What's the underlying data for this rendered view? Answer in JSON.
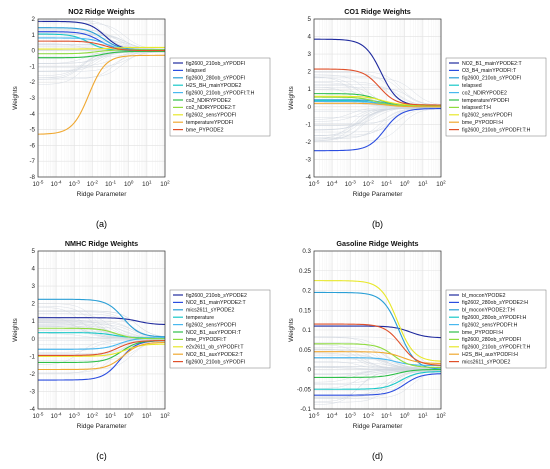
{
  "figure": {
    "panels": [
      {
        "id": "a",
        "caption": "(a)"
      },
      {
        "id": "b",
        "caption": "(b)"
      },
      {
        "id": "c",
        "caption": "(c)"
      },
      {
        "id": "d",
        "caption": "(d)"
      }
    ]
  },
  "chart_data": [
    {
      "type": "line",
      "title": "NO2 Ridge Weights",
      "xlabel": "Ridge Parameter",
      "ylabel": "Weights",
      "xscale": "log",
      "xlim": [
        1e-05,
        100
      ],
      "ylim": [
        -8,
        2
      ],
      "xticks": [
        "10-5",
        "10-4",
        "10-3",
        "10-2",
        "10-1",
        "100",
        "101",
        "102"
      ],
      "yticks": [
        -8,
        -7,
        -6,
        -5,
        -4,
        -3,
        -2,
        -1,
        0,
        1,
        2
      ],
      "grid": true,
      "legend_position": "right",
      "background_lines": 40,
      "series": [
        {
          "name": "fig2600_210ob_sYPODFI",
          "color": "#1f2a9e",
          "start": 1.85,
          "end": 0,
          "knee": -1.3
        },
        {
          "name": "telapsed",
          "color": "#2b4de0",
          "start": 1.2,
          "end": 0.05,
          "knee": -1.6
        },
        {
          "name": "fig2600_280ob_sYPODFI",
          "color": "#2a9fd6",
          "start": 1.45,
          "end": 0.05,
          "knee": -1.4
        },
        {
          "name": "H2S_BH_mainYPODE2",
          "color": "#18c8c8",
          "start": 1.05,
          "end": 0.0,
          "knee": -2.2
        },
        {
          "name": "fig2600_210ob_sYPODFI:T:H",
          "color": "#48b8ef",
          "start": 0.8,
          "end": 0.0,
          "knee": -1.2
        },
        {
          "name": "co2_NDIRYPODE2",
          "color": "#2fbf4a",
          "start": -0.45,
          "end": -0.05,
          "knee": -1.5
        },
        {
          "name": "co2_NDIRYPODE2:T",
          "color": "#8fdc3e",
          "start": -0.2,
          "end": 0.05,
          "knee": -1.8
        },
        {
          "name": "fig2602_sensYPODFI",
          "color": "#e8e82a",
          "start": 0.1,
          "end": 0.2,
          "knee": -1.0
        },
        {
          "name": "temperatureYPODFI",
          "color": "#f0a830",
          "start": -5.3,
          "end": -0.3,
          "knee": -2.2
        },
        {
          "name": "bme_PYPODE2",
          "color": "#e0502a",
          "start": 0.6,
          "end": 0.0,
          "knee": -1.3
        }
      ]
    },
    {
      "type": "line",
      "title": "CO1 Ridge Weights",
      "xlabel": "Ridge Parameter",
      "ylabel": "Weights",
      "xscale": "log",
      "xlim": [
        1e-05,
        100
      ],
      "ylim": [
        -4,
        5
      ],
      "xticks": [
        "10-5",
        "10-4",
        "10-3",
        "10-2",
        "10-1",
        "100",
        "101",
        "102"
      ],
      "yticks": [
        -4,
        -3,
        -2,
        -1,
        0,
        1,
        2,
        3,
        4,
        5
      ],
      "grid": true,
      "legend_position": "right",
      "background_lines": 40,
      "series": [
        {
          "name": "NO2_B1_mainYPODE2:T",
          "color": "#1f2a9e",
          "start": 3.85,
          "end": 0.05,
          "knee": -1.3
        },
        {
          "name": "O3_B4_mainYPODFI:T",
          "color": "#2b4de0",
          "start": -2.5,
          "end": -0.1,
          "knee": -1.1
        },
        {
          "name": "fig2600_210ob_sYPODFI",
          "color": "#2a9fd6",
          "start": 0.4,
          "end": 0.0,
          "knee": -1.0
        },
        {
          "name": "telapsed",
          "color": "#18c8c8",
          "start": 0.35,
          "end": 0.05,
          "knee": -1.4
        },
        {
          "name": "co2_NDIRYPODE2",
          "color": "#48b8ef",
          "start": 0.3,
          "end": 0.02,
          "knee": -1.2
        },
        {
          "name": "temperatureYPODFI",
          "color": "#2fbf4a",
          "start": 0.75,
          "end": 0.1,
          "knee": -1.5
        },
        {
          "name": "telapsed:T:H",
          "color": "#8fdc3e",
          "start": 0.55,
          "end": 0.05,
          "knee": -1.6
        },
        {
          "name": "fig2602_sensYPODFI",
          "color": "#e8e82a",
          "start": 0.6,
          "end": 0.1,
          "knee": -1.2
        },
        {
          "name": "bme_PYPODFI:H",
          "color": "#f0a830",
          "start": 0.2,
          "end": 0.0,
          "knee": -1.0
        },
        {
          "name": "fig2600_210ob_sYPODFI:T:H",
          "color": "#e0502a",
          "start": 2.15,
          "end": 0.1,
          "knee": -1.4
        }
      ]
    },
    {
      "type": "line",
      "title": "NMHC Ridge Weights",
      "xlabel": "Ridge Parameter",
      "ylabel": "Weights",
      "xscale": "log",
      "xlim": [
        1e-05,
        100
      ],
      "ylim": [
        -4,
        5
      ],
      "xticks": [
        "10-5",
        "10-4",
        "10-3",
        "10-2",
        "10-1",
        "100",
        "101",
        "102"
      ],
      "yticks": [
        -4,
        -3,
        -2,
        -1,
        0,
        1,
        2,
        3,
        4,
        5
      ],
      "grid": true,
      "legend_position": "right",
      "background_lines": 40,
      "series": [
        {
          "name": "fig2600_210ob_sYPODE2",
          "color": "#1f2a9e",
          "start": 1.2,
          "end": 0.8,
          "knee": 0.5
        },
        {
          "name": "NO2_B1_mainYPODE2:T",
          "color": "#2b4de0",
          "start": -2.35,
          "end": -0.1,
          "knee": -0.5
        },
        {
          "name": "mics2611_sYPODE2",
          "color": "#2a9fd6",
          "start": 2.25,
          "end": 0.1,
          "knee": -0.3
        },
        {
          "name": "temperature",
          "color": "#18c8c8",
          "start": 0.35,
          "end": 0.05,
          "knee": -0.8
        },
        {
          "name": "fig2602_sensYPODFI",
          "color": "#48b8ef",
          "start": -0.6,
          "end": 0.05,
          "knee": -0.5
        },
        {
          "name": "NO2_B1_auxYPODFI:T",
          "color": "#2fbf4a",
          "start": -1.35,
          "end": -0.1,
          "knee": -0.4
        },
        {
          "name": "bme_PYPODFI:T",
          "color": "#8fdc3e",
          "start": 0.6,
          "end": 0.0,
          "knee": -0.7
        },
        {
          "name": "e2v2611_ob_sYPODFI:T",
          "color": "#e8e82a",
          "start": -1.0,
          "end": -0.3,
          "knee": -0.2
        },
        {
          "name": "NO2_B1_auxYPODE2:T",
          "color": "#f0a830",
          "start": -1.75,
          "end": -0.2,
          "knee": -0.3
        },
        {
          "name": "fig2600_210ob_sYPODFI",
          "color": "#e0502a",
          "start": -0.95,
          "end": -0.1,
          "knee": -0.6
        }
      ]
    },
    {
      "type": "line",
      "title": "Gasoline Ridge Weights",
      "xlabel": "Ridge Parameter",
      "ylabel": "Weights",
      "xscale": "log",
      "xlim": [
        1e-05,
        100
      ],
      "ylim": [
        -0.1,
        0.3
      ],
      "xticks": [
        "10-5",
        "10-4",
        "10-3",
        "10-2",
        "10-1",
        "100",
        "101",
        "102"
      ],
      "yticks": [
        -0.1,
        -0.05,
        0,
        0.05,
        0.1,
        0.15,
        0.2,
        0.25,
        0.3
      ],
      "grid": true,
      "legend_position": "right",
      "background_lines": 40,
      "series": [
        {
          "name": "bl_moconYPODE2",
          "color": "#1f2a9e",
          "start": 0.11,
          "end": 0.08,
          "knee": 0.3
        },
        {
          "name": "fig2602_280ob_sYPODE2:H",
          "color": "#2b4de0",
          "start": -0.065,
          "end": -0.01,
          "knee": 0.0
        },
        {
          "name": "bl_moconYPODE2:T:H",
          "color": "#2a9fd6",
          "start": 0.195,
          "end": 0.0,
          "knee": -0.3
        },
        {
          "name": "fig2600_280ob_sYPODFI:H",
          "color": "#18c8c8",
          "start": -0.05,
          "end": -0.005,
          "knee": -0.2
        },
        {
          "name": "fig2602_sensYPODFI:H",
          "color": "#48b8ef",
          "start": 0.03,
          "end": 0.01,
          "knee": -0.5
        },
        {
          "name": "bme_PYPODFI:H",
          "color": "#2fbf4a",
          "start": -0.02,
          "end": 0.0,
          "knee": -0.4
        },
        {
          "name": "fig2600_280ob_sYPODFI",
          "color": "#8fdc3e",
          "start": 0.065,
          "end": 0.005,
          "knee": -0.6
        },
        {
          "name": "fig2600_210ob_sYPODFI:T:H",
          "color": "#e8e82a",
          "start": 0.225,
          "end": 0.02,
          "knee": -0.4
        },
        {
          "name": "H2S_BH_auxYPODFI:H",
          "color": "#f0a830",
          "start": 0.045,
          "end": 0.015,
          "knee": -0.1
        },
        {
          "name": "mics2611_sYPODE2",
          "color": "#e0502a",
          "start": 0.115,
          "end": 0.01,
          "knee": -0.2
        }
      ]
    }
  ]
}
